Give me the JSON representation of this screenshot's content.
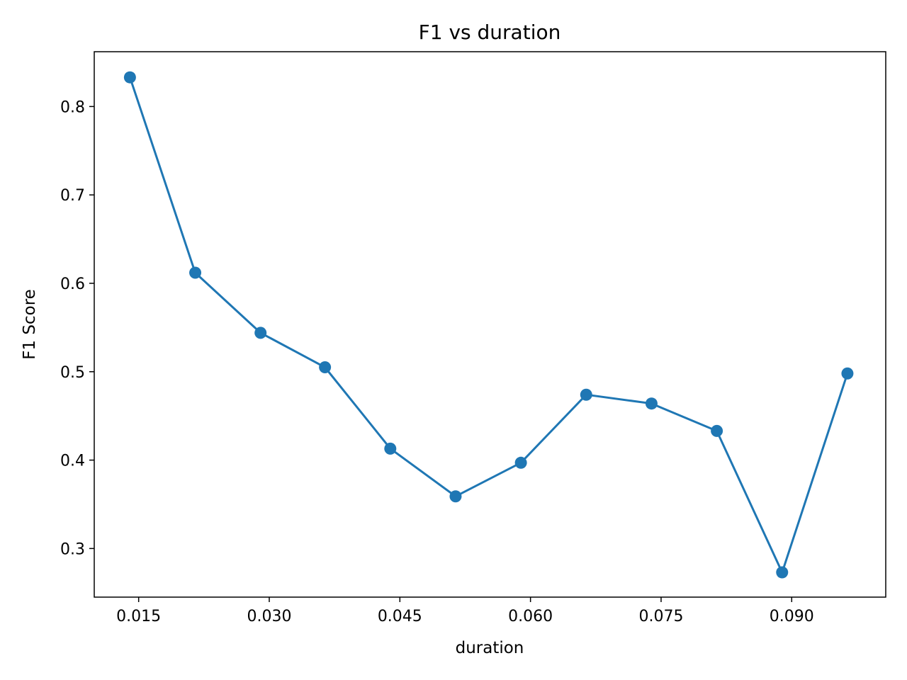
{
  "chart_data": {
    "type": "line",
    "title": "F1 vs duration",
    "xlabel": "duration",
    "ylabel": "F1 Score",
    "xlim": [
      0.0099,
      0.1008
    ],
    "ylim": [
      0.245,
      0.862
    ],
    "xticks": [
      0.015,
      0.03,
      0.045,
      0.06,
      0.075,
      0.09
    ],
    "xtick_labels": [
      "0.015",
      "0.030",
      "0.045",
      "0.060",
      "0.075",
      "0.090"
    ],
    "yticks": [
      0.3,
      0.4,
      0.5,
      0.6,
      0.7,
      0.8
    ],
    "ytick_labels": [
      "0.3",
      "0.4",
      "0.5",
      "0.6",
      "0.7",
      "0.8"
    ],
    "grid": false,
    "legend": "none",
    "series": [
      {
        "color": "#1f77b4",
        "marker": "circle",
        "x": [
          0.014,
          0.0215,
          0.029,
          0.0364,
          0.0439,
          0.0514,
          0.0589,
          0.0664,
          0.0739,
          0.0814,
          0.0889,
          0.0964
        ],
        "y": [
          0.833,
          0.612,
          0.544,
          0.505,
          0.413,
          0.359,
          0.397,
          0.474,
          0.464,
          0.433,
          0.273,
          0.498
        ]
      }
    ]
  }
}
